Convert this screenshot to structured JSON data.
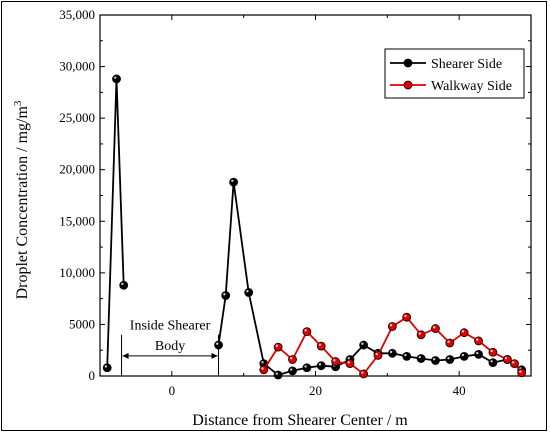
{
  "chart_data": {
    "type": "line",
    "title": "",
    "xlabel": "Distance from Shearer Center / m",
    "ylabel": "Droplet Concentration / mg/m",
    "ylabel_superscript": "3",
    "xlim": [
      -10,
      50
    ],
    "ylim": [
      0,
      35000
    ],
    "xticks": [
      {
        "value": 0,
        "label": "0"
      },
      {
        "value": 20,
        "label": "20"
      },
      {
        "value": 40,
        "label": "40"
      }
    ],
    "yticks": [
      {
        "value": 0,
        "label": "0"
      },
      {
        "value": 5000,
        "label": "5000"
      },
      {
        "value": 10000,
        "label": "10,000"
      },
      {
        "value": 15000,
        "label": "15,000"
      },
      {
        "value": 20000,
        "label": "20,000"
      },
      {
        "value": 25000,
        "label": "25,000"
      },
      {
        "value": 30000,
        "label": "30,000"
      },
      {
        "value": 35000,
        "label": "35,000"
      }
    ],
    "legend_position": "top-right",
    "series": [
      {
        "name": "Shearer Side",
        "color": "#000000",
        "segments": [
          [
            [
              -9.0,
              800
            ],
            [
              -7.7,
              28800
            ],
            [
              -6.7,
              8800
            ]
          ],
          [
            [
              6.5,
              3000
            ],
            [
              7.5,
              7800
            ],
            [
              8.6,
              18800
            ],
            [
              10.7,
              8100
            ],
            [
              12.8,
              1200
            ],
            [
              14.8,
              100
            ],
            [
              16.8,
              500
            ],
            [
              18.8,
              800
            ],
            [
              20.8,
              1000
            ],
            [
              22.8,
              900
            ],
            [
              24.8,
              1600
            ],
            [
              26.7,
              3000
            ],
            [
              28.7,
              2200
            ],
            [
              30.7,
              2200
            ],
            [
              32.7,
              1900
            ],
            [
              34.7,
              1700
            ],
            [
              36.7,
              1500
            ],
            [
              38.7,
              1600
            ],
            [
              40.7,
              1900
            ],
            [
              42.7,
              2100
            ],
            [
              44.7,
              1300
            ],
            [
              46.7,
              1600
            ],
            [
              48.7,
              600
            ]
          ]
        ]
      },
      {
        "name": "Walkway Side",
        "color": "#e00000",
        "segments": [
          [
            [
              12.8,
              600
            ],
            [
              14.8,
              2800
            ],
            [
              16.8,
              1600
            ],
            [
              18.8,
              4300
            ],
            [
              20.8,
              2900
            ],
            [
              22.8,
              1400
            ],
            [
              24.8,
              1200
            ],
            [
              26.7,
              200
            ],
            [
              28.7,
              2000
            ],
            [
              30.7,
              4800
            ],
            [
              32.7,
              5700
            ],
            [
              34.7,
              4000
            ],
            [
              36.7,
              4600
            ],
            [
              38.7,
              3200
            ],
            [
              40.7,
              4200
            ],
            [
              42.7,
              3400
            ],
            [
              44.7,
              2300
            ],
            [
              46.7,
              1600
            ],
            [
              47.7,
              1200
            ],
            [
              48.7,
              300
            ]
          ]
        ]
      }
    ],
    "annotations": [
      {
        "text_line1": "Inside Shearer",
        "text_line2": "Body",
        "span": [
          -7.0,
          6.5
        ]
      }
    ]
  }
}
